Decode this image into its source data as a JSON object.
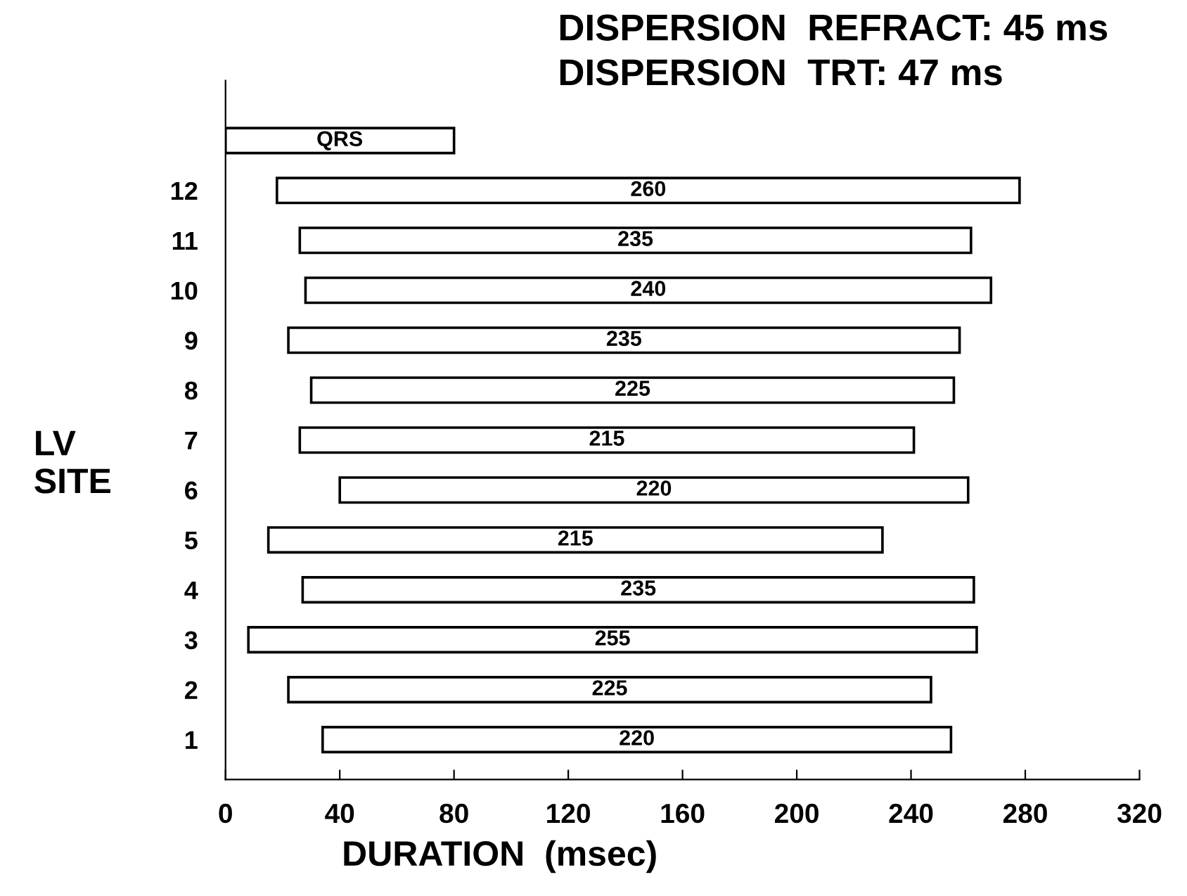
{
  "chart_data": {
    "type": "bar",
    "orientation": "horizontal",
    "ylabel": "LV\nSITE",
    "xlabel": "DURATION  (msec)",
    "categories": [
      null,
      "12",
      "11",
      "10",
      "9",
      "8",
      "7",
      "6",
      "5",
      "4",
      "3",
      "2",
      "1"
    ],
    "values": [
      80,
      260,
      235,
      240,
      235,
      225,
      215,
      220,
      215,
      235,
      255,
      225,
      220
    ],
    "base": [
      0,
      18,
      26,
      28,
      22,
      30,
      26,
      40,
      15,
      27,
      8,
      22,
      34
    ],
    "value_labels": [
      "QRS",
      "260",
      "235",
      "240",
      "235",
      "225",
      "215",
      "220",
      "215",
      "235",
      "255",
      "225",
      "220"
    ],
    "color": "#ffffff",
    "xlim": [
      0,
      320
    ],
    "xticks": [
      0,
      40,
      80,
      120,
      160,
      200,
      240,
      280,
      320
    ],
    "grid": false,
    "legend": false,
    "annotations": [
      "DISPERSION  REFRACT: 45 ms",
      "DISPERSION  TRT: 47 ms"
    ]
  }
}
